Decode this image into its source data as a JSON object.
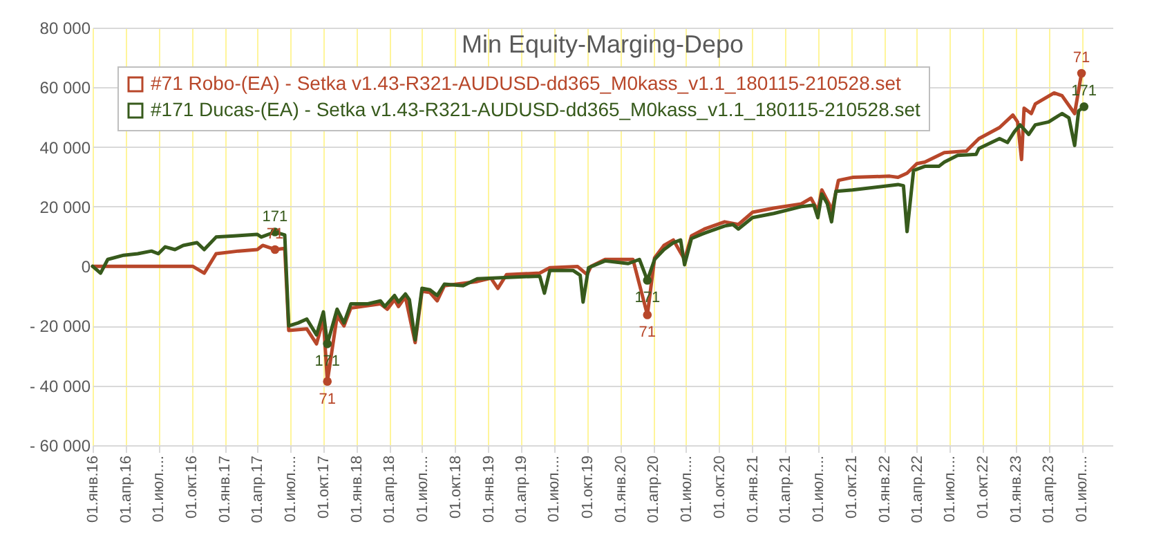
{
  "chart_data": {
    "type": "line",
    "title": "Min Equity-Marging-Depo",
    "xlim": [
      "2016-01-01",
      "2023-09-25"
    ],
    "xticks": [
      {
        "value": "2016-01-01",
        "label": "01.янв.16"
      },
      {
        "value": "2016-04-01",
        "label": "01.апр.16"
      },
      {
        "value": "2016-07-01",
        "label": "01.июл...."
      },
      {
        "value": "2016-10-01",
        "label": "01.окт.16"
      },
      {
        "value": "2017-01-01",
        "label": "01.янв.17"
      },
      {
        "value": "2017-04-01",
        "label": "01.апр.17"
      },
      {
        "value": "2017-07-01",
        "label": "01.июл...."
      },
      {
        "value": "2017-10-01",
        "label": "01.окт.17"
      },
      {
        "value": "2018-01-01",
        "label": "01.янв.18"
      },
      {
        "value": "2018-04-01",
        "label": "01.апр.18"
      },
      {
        "value": "2018-07-01",
        "label": "01.июл...."
      },
      {
        "value": "2018-10-01",
        "label": "01.окт.18"
      },
      {
        "value": "2019-01-01",
        "label": "01.янв.19"
      },
      {
        "value": "2019-04-01",
        "label": "01.апр.19"
      },
      {
        "value": "2019-07-01",
        "label": "01.июл...."
      },
      {
        "value": "2019-10-01",
        "label": "01.окт.19"
      },
      {
        "value": "2020-01-01",
        "label": "01.янв.20"
      },
      {
        "value": "2020-04-01",
        "label": "01.апр.20"
      },
      {
        "value": "2020-07-01",
        "label": "01.июл...."
      },
      {
        "value": "2020-10-01",
        "label": "01.окт.20"
      },
      {
        "value": "2021-01-01",
        "label": "01.янв.21"
      },
      {
        "value": "2021-04-01",
        "label": "01.апр.21"
      },
      {
        "value": "2021-07-01",
        "label": "01.июл...."
      },
      {
        "value": "2021-10-01",
        "label": "01.окт.21"
      },
      {
        "value": "2022-01-01",
        "label": "01.янв.22"
      },
      {
        "value": "2022-04-01",
        "label": "01.апр.22"
      },
      {
        "value": "2022-07-01",
        "label": "01.июл...."
      },
      {
        "value": "2022-10-01",
        "label": "01.окт.22"
      },
      {
        "value": "2023-01-01",
        "label": "01.янв.23"
      },
      {
        "value": "2023-04-01",
        "label": "01.апр.23"
      },
      {
        "value": "2023-07-01",
        "label": "01.июл...."
      }
    ],
    "ylim": [
      -60000,
      80000
    ],
    "yticks": [
      {
        "value": -60000,
        "label": "- 60 000"
      },
      {
        "value": -40000,
        "label": "- 40 000"
      },
      {
        "value": -20000,
        "label": "- 20 000"
      },
      {
        "value": 0,
        "label": "0"
      },
      {
        "value": 20000,
        "label": "20 000"
      },
      {
        "value": 40000,
        "label": "40 000"
      },
      {
        "value": 60000,
        "label": "60 000"
      },
      {
        "value": 80000,
        "label": "80 000"
      }
    ],
    "grid": true,
    "legend": "top left",
    "line_style": "solid",
    "series": [
      {
        "name": "#71 Robo-(EA) - Setka v1.43-R321-AUDUSD-dd365_M0kass_v1.1_180115-210528.set",
        "color": "#b8472a",
        "x": [
          "2016-01-01",
          "2016-10-04",
          "2016-11-05",
          "2016-12-08",
          "2017-02-08",
          "2017-04-01",
          "2017-04-16",
          "2017-05-20",
          "2017-06-16",
          "2017-06-27",
          "2017-08-16",
          "2017-09-12",
          "2017-10-01",
          "2017-10-12",
          "2017-11-08",
          "2017-11-27",
          "2017-12-16",
          "2018-03-08",
          "2018-03-27",
          "2018-04-16",
          "2018-04-27",
          "2018-05-16",
          "2018-06-12",
          "2018-07-01",
          "2018-07-23",
          "2018-08-12",
          "2018-09-01",
          "2018-12-01",
          "2019-01-08",
          "2019-01-27",
          "2019-02-20",
          "2019-05-23",
          "2019-06-20",
          "2019-09-05",
          "2019-10-01",
          "2019-10-12",
          "2019-11-20",
          "2020-02-05",
          "2020-03-16",
          "2020-04-05",
          "2020-05-01",
          "2020-05-27",
          "2020-06-27",
          "2020-07-16",
          "2020-08-23",
          "2020-10-16",
          "2020-11-23",
          "2021-01-01",
          "2021-03-01",
          "2021-05-16",
          "2021-06-12",
          "2021-07-01",
          "2021-07-12",
          "2021-08-01",
          "2021-08-08",
          "2021-08-27",
          "2021-10-05",
          "2022-01-16",
          "2022-02-08",
          "2022-03-05",
          "2022-04-01",
          "2022-04-23",
          "2022-06-16",
          "2022-08-16",
          "2022-09-20",
          "2022-11-16",
          "2022-12-23",
          "2023-01-05",
          "2023-01-16",
          "2023-01-23",
          "2023-02-12",
          "2023-02-23",
          "2023-04-16",
          "2023-05-08",
          "2023-06-12",
          "2023-07-01"
        ],
        "values": [
          0,
          0,
          -2300,
          4200,
          5100,
          5600,
          7000,
          5600,
          6000,
          -21500,
          -21000,
          -26000,
          -17700,
          -38600,
          -16700,
          -20000,
          -14000,
          -12600,
          -14400,
          -11200,
          -13500,
          -10200,
          -25600,
          -8400,
          -8800,
          -11600,
          -6500,
          -5100,
          -4000,
          -7400,
          -2800,
          -2300,
          -500,
          -100,
          -2800,
          0,
          2300,
          2300,
          -16300,
          2800,
          7000,
          8800,
          2300,
          10200,
          12600,
          14900,
          14000,
          18100,
          19500,
          20900,
          22800,
          18600,
          25600,
          21000,
          18100,
          28800,
          29800,
          30200,
          29800,
          31200,
          34400,
          34900,
          38100,
          38600,
          42800,
          46500,
          50700,
          48400,
          35800,
          53000,
          51200,
          54400,
          58100,
          57200,
          51200,
          64700
        ]
      },
      {
        "name": "#171 Ducas-(EA) - Setka v1.43-R321-AUDUSD-dd365_M0kass_v1.1_180115-210528.set",
        "color": "#375a1c",
        "x": [
          "2016-01-01",
          "2016-01-23",
          "2016-02-12",
          "2016-03-27",
          "2016-05-05",
          "2016-06-12",
          "2016-07-01",
          "2016-07-20",
          "2016-08-16",
          "2016-09-08",
          "2016-10-16",
          "2016-11-05",
          "2016-12-08",
          "2017-01-27",
          "2017-04-01",
          "2017-04-12",
          "2017-05-20",
          "2017-06-16",
          "2017-06-27",
          "2017-07-23",
          "2017-08-16",
          "2017-09-12",
          "2017-10-01",
          "2017-10-12",
          "2017-11-08",
          "2017-11-27",
          "2017-12-16",
          "2018-02-01",
          "2018-03-08",
          "2018-03-20",
          "2018-04-16",
          "2018-04-27",
          "2018-05-16",
          "2018-05-27",
          "2018-06-12",
          "2018-07-01",
          "2018-07-23",
          "2018-08-12",
          "2018-09-01",
          "2018-10-23",
          "2018-12-01",
          "2019-05-23",
          "2019-06-05",
          "2019-06-20",
          "2019-08-23",
          "2019-09-12",
          "2019-09-20",
          "2019-10-05",
          "2019-11-20",
          "2020-01-23",
          "2020-02-23",
          "2020-03-16",
          "2020-04-05",
          "2020-05-01",
          "2020-05-27",
          "2020-06-16",
          "2020-06-27",
          "2020-07-16",
          "2020-08-23",
          "2020-10-16",
          "2020-11-08",
          "2020-11-23",
          "2021-01-01",
          "2021-03-01",
          "2021-05-16",
          "2021-06-20",
          "2021-07-01",
          "2021-07-12",
          "2021-07-27",
          "2021-08-08",
          "2021-08-20",
          "2021-10-05",
          "2022-02-08",
          "2022-02-23",
          "2022-03-05",
          "2022-03-23",
          "2022-04-23",
          "2022-06-01",
          "2022-06-16",
          "2022-07-23",
          "2022-09-12",
          "2022-09-20",
          "2022-11-16",
          "2022-12-08",
          "2022-12-27",
          "2023-01-12",
          "2023-02-05",
          "2023-02-23",
          "2023-04-01",
          "2023-05-08",
          "2023-05-27",
          "2023-06-12",
          "2023-06-23",
          "2023-07-08"
        ],
        "values": [
          0,
          -2300,
          2300,
          3700,
          4200,
          5100,
          4200,
          6500,
          5600,
          7000,
          7900,
          5600,
          9800,
          10200,
          10700,
          9800,
          11500,
          10500,
          -20000,
          -19000,
          -17700,
          -23000,
          -15300,
          -26000,
          -14400,
          -19000,
          -12600,
          -12600,
          -11600,
          -13500,
          -9800,
          -12000,
          -9300,
          -11200,
          -24700,
          -7400,
          -7900,
          -9800,
          -6000,
          -6500,
          -4200,
          -3300,
          -9000,
          -1400,
          -1400,
          -3000,
          -12000,
          -500,
          1800,
          900,
          2300,
          -4700,
          2300,
          5600,
          7900,
          8800,
          500,
          9300,
          11200,
          13500,
          14000,
          12500,
          16300,
          17700,
          20000,
          20500,
          16300,
          24200,
          21000,
          14900,
          25100,
          25600,
          27400,
          27000,
          11600,
          32100,
          33500,
          33500,
          34900,
          37200,
          37500,
          39500,
          42800,
          41500,
          45100,
          47400,
          44200,
          47400,
          48400,
          51200,
          49800,
          40500,
          52100,
          53500
        ]
      }
    ],
    "annotations": [
      {
        "text": "171",
        "x": "2017-05-20",
        "y": 11500
      },
      {
        "text": "71",
        "x": "2017-05-20",
        "y": 5600
      },
      {
        "text": "171",
        "x": "2017-10-12",
        "y": -26000
      },
      {
        "text": "71",
        "x": "2017-10-12",
        "y": -38600
      },
      {
        "text": "171",
        "x": "2020-03-16",
        "y": -4700
      },
      {
        "text": "71",
        "x": "2020-03-16",
        "y": -16300
      },
      {
        "text": "171",
        "x": "2023-07-08",
        "y": 53500
      },
      {
        "text": "71",
        "x": "2023-07-01",
        "y": 64700
      }
    ]
  }
}
